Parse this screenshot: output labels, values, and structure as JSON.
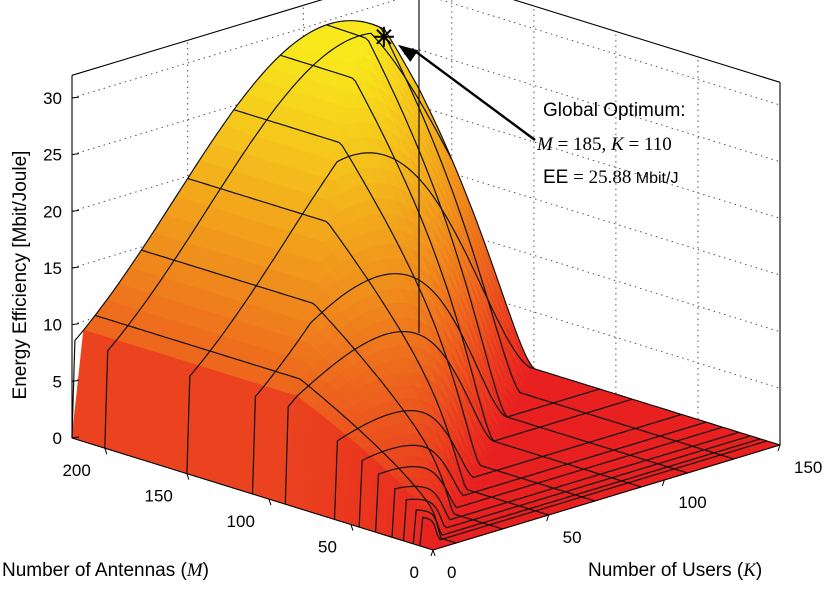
{
  "chart_data": {
    "type": "surface3d",
    "title": "",
    "zlabel": "Energy Efficiency [Mbit/Joule]",
    "xlabel_text": "Number of Antennas (",
    "xlabel_var": "M",
    "xlabel_close": ")",
    "ylabel_text": "Number of Users (",
    "ylabel_var": "K",
    "ylabel_close": ")",
    "M_ticks": [
      "0",
      "50",
      "100",
      "150",
      "200"
    ],
    "K_ticks": [
      "0",
      "50",
      "100",
      "150"
    ],
    "EE_ticks": [
      "0",
      "5",
      "10",
      "15",
      "20",
      "25",
      "30"
    ],
    "M_range": [
      0,
      220
    ],
    "K_range": [
      0,
      150
    ],
    "EE_range": [
      0,
      32
    ],
    "grid": true,
    "colormap": [
      "#e82020",
      "#f08a1c",
      "#f8e81c"
    ],
    "M_gridlines": [
      220,
      200,
      150,
      110,
      90,
      60,
      45,
      35,
      25,
      18,
      12,
      8
    ],
    "K_gridlines": [
      10,
      30,
      50,
      70,
      90,
      110,
      130,
      150
    ],
    "annotation": {
      "title": "Global Optimum:",
      "M_label": "M",
      "M_eq": " = 185, ",
      "K_label": "K",
      "K_eq": " = 110",
      "EE_label": "EE",
      "EE_eq": " = 25.88",
      "EE_unit": " Mbit/J"
    },
    "optimum": {
      "M": 185,
      "K": 110,
      "EE": 25.88
    }
  }
}
